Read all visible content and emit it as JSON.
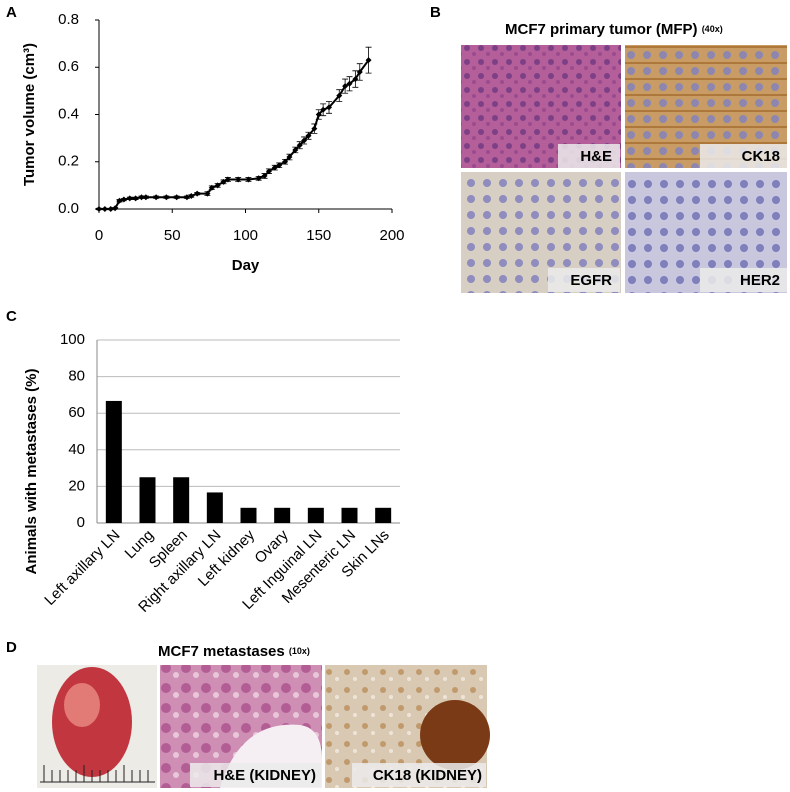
{
  "panel_labels": [
    "A",
    "B",
    "C",
    "D"
  ],
  "chart_data": [
    {
      "type": "line",
      "x_label": "Day",
      "y_label": "Tumor volume (cm³)",
      "color": "#000000",
      "x": [
        0,
        4,
        8,
        11,
        14,
        17,
        21,
        25,
        29,
        32,
        39,
        46,
        53,
        60,
        63,
        67,
        74,
        77,
        81,
        85,
        88,
        95,
        102,
        109,
        113,
        116,
        120,
        123,
        127,
        130,
        134,
        137,
        140,
        143,
        147,
        150,
        153,
        157,
        164,
        168,
        171,
        175,
        178,
        184
      ],
      "values": [
        0,
        0,
        0,
        0.003,
        0.035,
        0.04,
        0.045,
        0.045,
        0.05,
        0.05,
        0.05,
        0.05,
        0.05,
        0.05,
        0.055,
        0.065,
        0.065,
        0.09,
        0.1,
        0.115,
        0.125,
        0.125,
        0.125,
        0.13,
        0.14,
        0.16,
        0.175,
        0.185,
        0.2,
        0.22,
        0.25,
        0.27,
        0.29,
        0.31,
        0.34,
        0.4,
        0.42,
        0.43,
        0.48,
        0.52,
        0.53,
        0.55,
        0.58,
        0.63
      ],
      "errors": [
        0.003,
        0.003,
        0.003,
        0.003,
        0.005,
        0.005,
        0.005,
        0.005,
        0.005,
        0.005,
        0.005,
        0.005,
        0.005,
        0.005,
        0.005,
        0.005,
        0.008,
        0.008,
        0.008,
        0.008,
        0.008,
        0.008,
        0.008,
        0.008,
        0.01,
        0.01,
        0.01,
        0.01,
        0.01,
        0.012,
        0.012,
        0.015,
        0.015,
        0.015,
        0.02,
        0.02,
        0.025,
        0.025,
        0.025,
        0.03,
        0.03,
        0.035,
        0.035,
        0.055
      ],
      "xlim": [
        0,
        200
      ],
      "xticks": [
        0,
        50,
        100,
        150,
        200
      ],
      "ylim": [
        0,
        0.8
      ],
      "yticks": [
        {
          "value": 0,
          "label": "0.0"
        },
        0.2,
        0.4,
        0.6,
        0.8
      ]
    },
    {
      "type": "bar",
      "y_label": "Animals with metastases (%)",
      "color": "#000000",
      "grid": true,
      "categories": [
        "Left axillary LN",
        "Lung",
        "Spleen",
        "Right axillary LN",
        "Left kidney",
        "Ovary",
        "Left Inguinal LN",
        "Mesenteric LN",
        "Skin LNs"
      ],
      "values": [
        66.7,
        25,
        25,
        16.7,
        8.3,
        8.3,
        8.3,
        8.3,
        8.3
      ],
      "ylim": [
        0,
        100
      ],
      "yticks": [
        0,
        20,
        40,
        60,
        80,
        100
      ]
    }
  ],
  "panel_b": {
    "title": "MCF7 primary tumor (MFP)",
    "magnification": "(40x)",
    "images": [
      "H&E",
      "CK18",
      "EGFR",
      "HER2"
    ]
  },
  "panel_d": {
    "title": "MCF7 metastases",
    "magnification": "(10x)",
    "images": [
      "H&E (KIDNEY)",
      "CK18 (KIDNEY)"
    ]
  }
}
